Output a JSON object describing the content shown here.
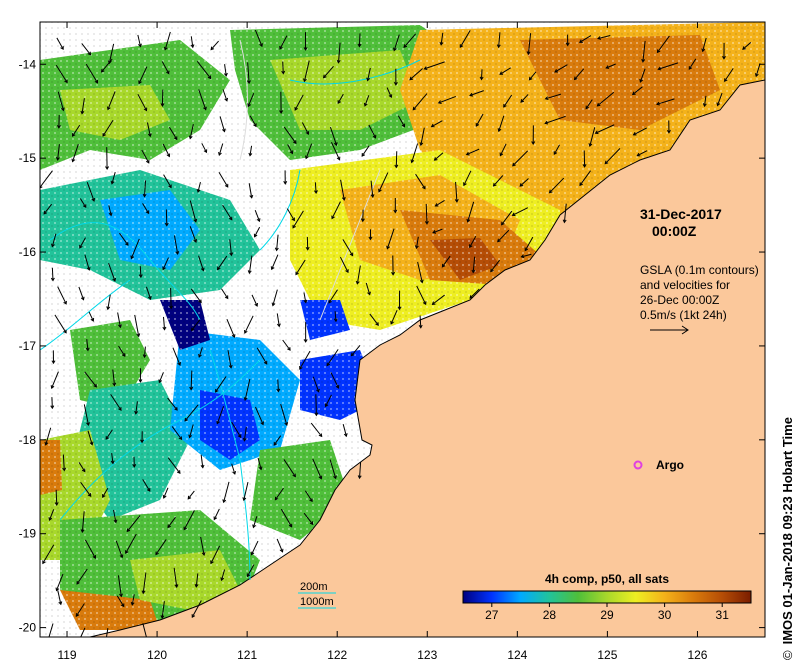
{
  "map": {
    "lon_ticks": [
      "119",
      "120",
      "121",
      "122",
      "123",
      "124",
      "125",
      "126"
    ],
    "lat_ticks": [
      "-14",
      "-15",
      "-16",
      "-17",
      "-18",
      "-19",
      "-20"
    ],
    "extent": {
      "lon_min": 118.7,
      "lon_max": 126.75,
      "lat_min": -20.1,
      "lat_max": -13.55
    },
    "land_color": "#fbc89b",
    "no_data_color": "#ffffff"
  },
  "annotations": {
    "date": "31-Dec-2017",
    "time": "00:00Z",
    "gsla_line1": "GSLA (0.1m contours)",
    "gsla_line2": "and velocities for",
    "gsla_line3": "26-Dec 00:00Z",
    "gsla_line4": "0.5m/s (1kt 24h)",
    "argo_label": "Argo",
    "argo_color": "#e040e0"
  },
  "bathymetry_legend": {
    "label_200": "200m",
    "label_1000": "1000m",
    "line_color": "#00d8e8"
  },
  "colorbar": {
    "title": "4h comp, p50, all sats",
    "ticks": [
      "27",
      "28",
      "29",
      "30",
      "31"
    ],
    "colors": [
      "#00007f",
      "#0033ff",
      "#00aaff",
      "#22c39a",
      "#4fbf3a",
      "#a8d82b",
      "#eeee22",
      "#f4b21a",
      "#d97b0c",
      "#b54d06",
      "#7a1d00"
    ]
  },
  "credit": {
    "symbol": "©",
    "text": "IMOS 01-Jan-2018 09:23 Hobart Time"
  }
}
